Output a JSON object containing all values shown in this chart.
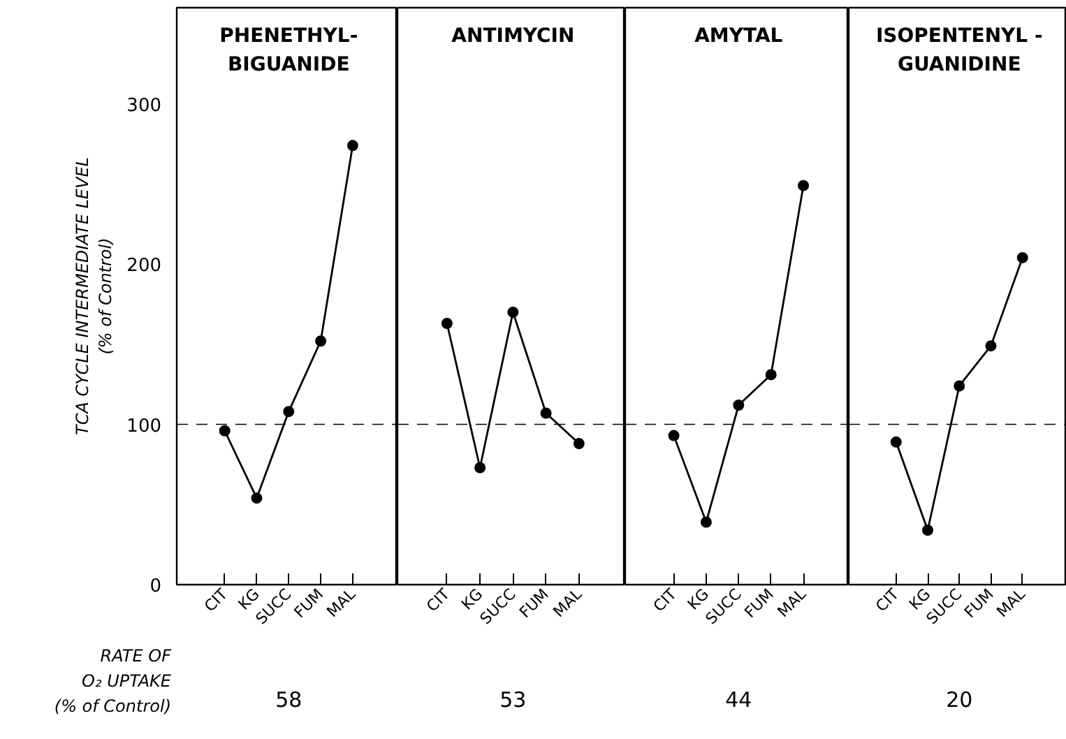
{
  "chart_data": [
    {
      "type": "line",
      "title": "PHENETHYL-\nBIGUANIDE",
      "ylabel": "TCA CYCLE INTERMEDIATE LEVEL\n(% of Control)",
      "categories": [
        "CIT",
        "KG",
        "SUCC",
        "FUM",
        "MAL"
      ],
      "values": [
        96,
        54,
        108,
        152,
        274
      ],
      "ylim": [
        0,
        360
      ],
      "yticks": [
        0,
        100,
        200,
        300
      ],
      "marker": "circle",
      "color": "#000000",
      "ref_lines": [
        {
          "axis": "y",
          "value": 100,
          "line_style": "dashed"
        }
      ],
      "annotations": [
        "RATE OF\nO₂ UPTAKE\n(% of Control)",
        "58"
      ],
      "grid": false
    },
    {
      "type": "line",
      "title": "ANTIMYCIN",
      "categories": [
        "CIT",
        "KG",
        "SUCC",
        "FUM",
        "MAL"
      ],
      "values": [
        163,
        73,
        170,
        107,
        88
      ],
      "ylim": [
        0,
        360
      ],
      "marker": "circle",
      "color": "#000000",
      "ref_lines": [
        {
          "axis": "y",
          "value": 100,
          "line_style": "dashed"
        }
      ],
      "annotations": [
        "53"
      ],
      "tick_labels": "x",
      "grid": false
    },
    {
      "type": "line",
      "title": "AMYTAL",
      "categories": [
        "CIT",
        "KG",
        "SUCC",
        "FUM",
        "MAL"
      ],
      "values": [
        93,
        39,
        112,
        131,
        249
      ],
      "ylim": [
        0,
        360
      ],
      "marker": "circle",
      "color": "#000000",
      "ref_lines": [
        {
          "axis": "y",
          "value": 100,
          "line_style": "dashed"
        }
      ],
      "annotations": [
        "44"
      ],
      "tick_labels": "x",
      "grid": false
    },
    {
      "type": "line",
      "title": "ISOPENTENYL -\nGUANIDINE",
      "categories": [
        "CIT",
        "KG",
        "SUCC",
        "FUM",
        "MAL"
      ],
      "values": [
        89,
        34,
        124,
        149,
        204
      ],
      "ylim": [
        0,
        360
      ],
      "marker": "circle",
      "color": "#000000",
      "ref_lines": [
        {
          "axis": "y",
          "value": 100,
          "line_style": "dashed"
        }
      ],
      "annotations": [
        "20"
      ],
      "tick_labels": "x",
      "grid": false
    }
  ]
}
